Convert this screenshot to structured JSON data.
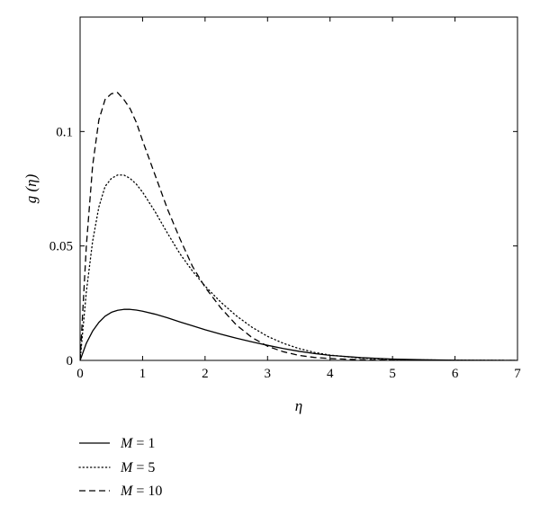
{
  "chart_data": {
    "type": "line",
    "title": "",
    "xlabel": "η",
    "ylabel": "g (η)",
    "xlim": [
      0,
      7
    ],
    "ylim": [
      0,
      0.15
    ],
    "xticks": [
      0,
      1,
      2,
      3,
      4,
      5,
      6,
      7
    ],
    "xtick_labels": [
      "0",
      "1",
      "2",
      "3",
      "4",
      "5",
      "6",
      "7"
    ],
    "yticks": [
      0,
      0.05,
      0.1
    ],
    "ytick_labels": [
      "0",
      "0.05",
      "0.1"
    ],
    "grid": false,
    "legend_position": "bottom-left, below plot",
    "series": [
      {
        "name": "M = 1",
        "legend_var": "M",
        "legend_value": "= 1",
        "style": "solid",
        "x": [
          0,
          0.1,
          0.2,
          0.3,
          0.4,
          0.5,
          0.6,
          0.7,
          0.8,
          0.9,
          1.0,
          1.2,
          1.4,
          1.6,
          1.8,
          2.0,
          2.25,
          2.5,
          2.75,
          3.0,
          3.25,
          3.5,
          3.75,
          4.0,
          4.5,
          5.0,
          5.5,
          6.0,
          6.5,
          7.0
        ],
        "y": [
          0,
          0.0075,
          0.0128,
          0.0166,
          0.0193,
          0.021,
          0.0219,
          0.0223,
          0.0223,
          0.022,
          0.0215,
          0.0202,
          0.0186,
          0.0168,
          0.0151,
          0.0134,
          0.0115,
          0.0097,
          0.0081,
          0.0066,
          0.0052,
          0.004,
          0.003,
          0.0022,
          0.0012,
          0.0006,
          0.0003,
          0.0001,
          5e-05,
          0
        ]
      },
      {
        "name": "M = 5",
        "legend_var": "M",
        "legend_value": "= 5",
        "style": "dotted",
        "x": [
          0,
          0.1,
          0.2,
          0.3,
          0.4,
          0.5,
          0.6,
          0.7,
          0.8,
          0.9,
          1.0,
          1.2,
          1.4,
          1.6,
          1.8,
          2.0,
          2.25,
          2.5,
          2.75,
          3.0,
          3.25,
          3.5,
          3.75,
          4.0,
          4.5,
          5.0,
          5.5,
          6.0,
          6.5,
          7.0
        ],
        "y": [
          0,
          0.03,
          0.052,
          0.067,
          0.076,
          0.0795,
          0.081,
          0.081,
          0.0795,
          0.077,
          0.0735,
          0.065,
          0.0555,
          0.0465,
          0.039,
          0.0325,
          0.0255,
          0.0195,
          0.0145,
          0.0105,
          0.0075,
          0.0052,
          0.0035,
          0.0023,
          0.001,
          0.0004,
          0.0002,
          0.0001,
          3e-05,
          0
        ]
      },
      {
        "name": "M = 10",
        "legend_var": "M",
        "legend_value": "= 10",
        "style": "dashed",
        "x": [
          0,
          0.1,
          0.2,
          0.3,
          0.4,
          0.5,
          0.6,
          0.7,
          0.8,
          0.9,
          1.0,
          1.2,
          1.4,
          1.6,
          1.8,
          2.0,
          2.25,
          2.5,
          2.75,
          3.0,
          3.25,
          3.5,
          3.75,
          4.0,
          4.5,
          5.0,
          5.5,
          6.0,
          6.5,
          7.0
        ],
        "y": [
          0,
          0.05,
          0.085,
          0.105,
          0.114,
          0.1165,
          0.117,
          0.114,
          0.11,
          0.104,
          0.096,
          0.081,
          0.066,
          0.053,
          0.041,
          0.032,
          0.023,
          0.0155,
          0.01,
          0.0062,
          0.0038,
          0.0022,
          0.0013,
          0.0008,
          0.0003,
          0.0001,
          5e-05,
          0,
          0,
          0
        ]
      }
    ]
  }
}
